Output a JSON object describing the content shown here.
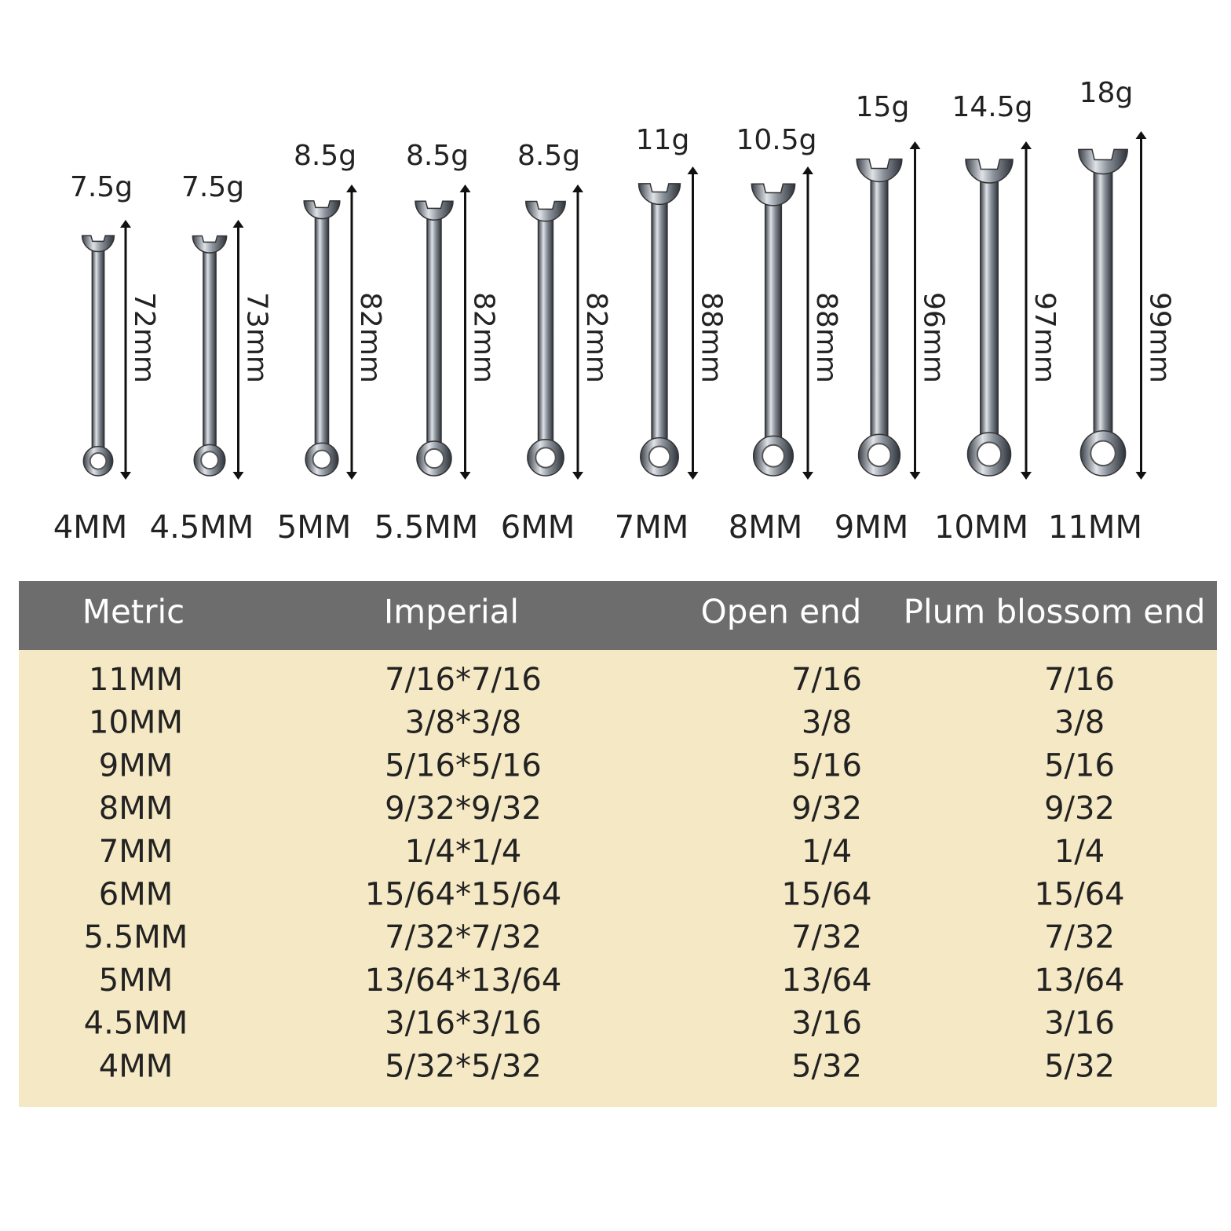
{
  "wrenches": [
    {
      "weight": "7.5g",
      "length": "72mm",
      "size": "4MM"
    },
    {
      "weight": "7.5g",
      "length": "73mm",
      "size": "4.5MM"
    },
    {
      "weight": "8.5g",
      "length": "82mm",
      "size": "5MM"
    },
    {
      "weight": "8.5g",
      "length": "82mm",
      "size": "5.5MM"
    },
    {
      "weight": "8.5g",
      "length": "82mm",
      "size": "6MM"
    },
    {
      "weight": "11g",
      "length": "88mm",
      "size": "7MM"
    },
    {
      "weight": "10.5g",
      "length": "88mm",
      "size": "8MM"
    },
    {
      "weight": "15g",
      "length": "96mm",
      "size": "9MM"
    },
    {
      "weight": "14.5g",
      "length": "97mm",
      "size": "10MM"
    },
    {
      "weight": "18g",
      "length": "99mm",
      "size": "11MM"
    }
  ],
  "table": {
    "header": [
      "Metric",
      "Imperial",
      "Open end",
      "Plum blossom end"
    ],
    "rows": [
      [
        "11MM",
        "7/16*7/16",
        "7/16",
        "7/16"
      ],
      [
        "10MM",
        "3/8*3/8",
        "3/8",
        "3/8"
      ],
      [
        "9MM",
        "5/16*5/16",
        "5/16",
        "5/16"
      ],
      [
        "8MM",
        "9/32*9/32",
        "9/32",
        "9/32"
      ],
      [
        "7MM",
        "1/4*1/4",
        "1/4",
        "1/4"
      ],
      [
        "6MM",
        "15/64*15/64",
        "15/64",
        "15/64"
      ],
      [
        "5.5MM",
        "7/32*7/32",
        "7/32",
        "7/32"
      ],
      [
        "5MM",
        "13/64*13/64",
        "13/64",
        "13/64"
      ],
      [
        "4.5MM",
        "3/16*3/16",
        "3/16",
        "3/16"
      ],
      [
        "4MM",
        "5/32*5/32",
        "5/32",
        "5/32"
      ]
    ]
  }
}
